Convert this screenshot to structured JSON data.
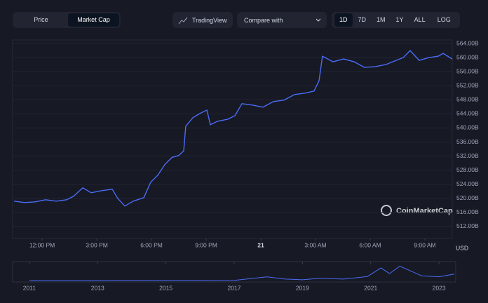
{
  "toolbar": {
    "toggle": [
      "Price",
      "Market Cap"
    ],
    "tradingview": "TradingView",
    "compare": "Compare with",
    "ranges": [
      "1D",
      "7D",
      "1M",
      "1Y",
      "ALL"
    ],
    "log": "LOG"
  },
  "chart_data": [
    {
      "type": "line",
      "color": "#4a6cf7",
      "grid": true,
      "watermark": "CoinMarketCap",
      "y_unit": "USD",
      "x": [
        10.46,
        11.04,
        11.62,
        12.19,
        12.77,
        13.35,
        13.73,
        14.23,
        14.69,
        15.27,
        15.85,
        16.15,
        16.54,
        17,
        17.58,
        17.96,
        18.35,
        18.73,
        19.12,
        19.5,
        19.77,
        19.88,
        20.27,
        20.65,
        21.04,
        21.23,
        21.62,
        22.19,
        22.58,
        22.96,
        23.54,
        24.12,
        24.69,
        25.27,
        25.85,
        26.42,
        26.92,
        27.19,
        27.38,
        27.96,
        28.54,
        29.12,
        29.69,
        30.27,
        30.85,
        31.42,
        31.81,
        32.19,
        32.69,
        33.23,
        33.73,
        34,
        34.5
      ],
      "values": [
        519.2,
        518.8,
        519,
        519.6,
        519.2,
        519.6,
        520.6,
        523,
        521.6,
        522.2,
        522.6,
        520,
        517.8,
        519.2,
        520.2,
        524.6,
        526.6,
        529.6,
        531.6,
        532.2,
        533.5,
        540.5,
        542.9,
        544.1,
        545.1,
        540.9,
        541.9,
        542.5,
        543.5,
        546.9,
        546.5,
        545.9,
        547.5,
        547.9,
        549.5,
        549.9,
        550.5,
        553.4,
        560.4,
        558.8,
        559.6,
        558.8,
        557.2,
        557.4,
        558,
        559.2,
        560,
        562,
        559.2,
        560,
        560.4,
        561.2,
        559.6
      ],
      "xlim": [
        10.46,
        34.5
      ],
      "xticks": [
        {
          "value": 12,
          "label": "12:00 PM"
        },
        {
          "value": 15,
          "label": "3:00 PM"
        },
        {
          "value": 18,
          "label": "6:00 PM"
        },
        {
          "value": 21,
          "label": "9:00 PM"
        },
        {
          "value": 24,
          "label": "21"
        },
        {
          "value": 27,
          "label": "3:00 AM"
        },
        {
          "value": 30,
          "label": "6:00 AM"
        },
        {
          "value": 33,
          "label": "9:00 AM"
        }
      ],
      "ylim": [
        508.6,
        565
      ],
      "yticks": [
        {
          "value": 512,
          "label": "512.00B"
        },
        {
          "value": 516,
          "label": "516.00B"
        },
        {
          "value": 520,
          "label": "520.00B"
        },
        {
          "value": 524,
          "label": "524.00B"
        },
        {
          "value": 528,
          "label": "528.00B"
        },
        {
          "value": 532,
          "label": "532.00B"
        },
        {
          "value": 536,
          "label": "536.00B"
        },
        {
          "value": 540,
          "label": "540.00B"
        },
        {
          "value": 544,
          "label": "544.00B"
        },
        {
          "value": 548,
          "label": "548.00B"
        },
        {
          "value": 552,
          "label": "552.00B"
        },
        {
          "value": 556,
          "label": "556.00B"
        },
        {
          "value": 560,
          "label": "560.00B"
        },
        {
          "value": 564,
          "label": "564.00B"
        }
      ]
    },
    {
      "type": "line",
      "color": "#4a6cf7",
      "x": [
        2011,
        2012,
        2013,
        2013.9,
        2015,
        2016,
        2017,
        2017.95,
        2018.5,
        2019,
        2019.5,
        2020.2,
        2020.9,
        2021.3,
        2021.55,
        2021.85,
        2022.2,
        2022.5,
        2023,
        2023.45
      ],
      "values": [
        0,
        1,
        2,
        15,
        4,
        6,
        15,
        320,
        130,
        70,
        200,
        130,
        350,
        1100,
        600,
        1250,
        800,
        400,
        330,
        560
      ],
      "xlim": [
        2010.51,
        2023.49
      ],
      "ylim": [
        0,
        1400
      ],
      "xticks": [
        2011,
        2013,
        2015,
        2017,
        2019,
        2021,
        2023
      ]
    }
  ]
}
